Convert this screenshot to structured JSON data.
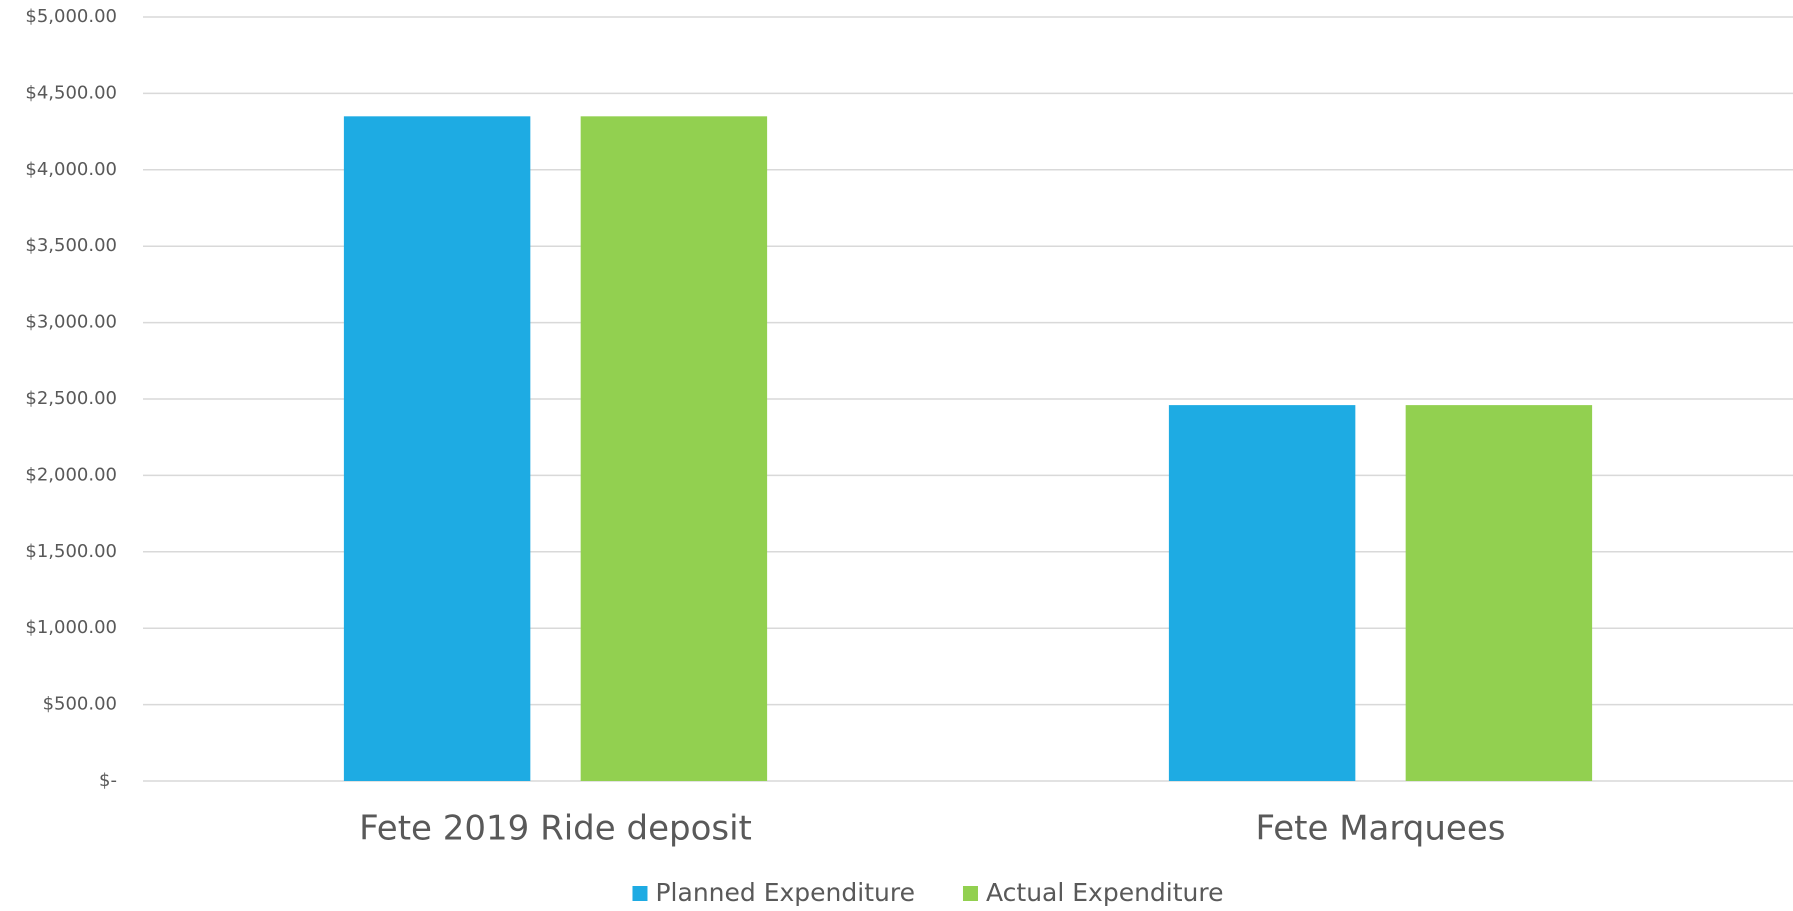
{
  "chart_data": {
    "type": "bar",
    "categories": [
      "Fete 2019 Ride deposit",
      "Fete Marquees"
    ],
    "series": [
      {
        "name": "Planned Expenditure",
        "color": "#1eabe3",
        "values": [
          4350,
          2460
        ]
      },
      {
        "name": "Actual Expenditure",
        "color": "#92d050",
        "values": [
          4350,
          2460
        ]
      }
    ],
    "ylim": [
      0,
      5000
    ],
    "yticks": [
      {
        "value": 0,
        "label": "$-"
      },
      {
        "value": 500,
        "label": "$500.00"
      },
      {
        "value": 1000,
        "label": "$1,000.00"
      },
      {
        "value": 1500,
        "label": "$1,500.00"
      },
      {
        "value": 2000,
        "label": "$2,000.00"
      },
      {
        "value": 2500,
        "label": "$2,500.00"
      },
      {
        "value": 3000,
        "label": "$3,000.00"
      },
      {
        "value": 3500,
        "label": "$3,500.00"
      },
      {
        "value": 4000,
        "label": "$4,000.00"
      },
      {
        "value": 4500,
        "label": "$4,500.00"
      },
      {
        "value": 5000,
        "label": "$5,000.00"
      }
    ],
    "grid": true,
    "legend": "bottom"
  }
}
